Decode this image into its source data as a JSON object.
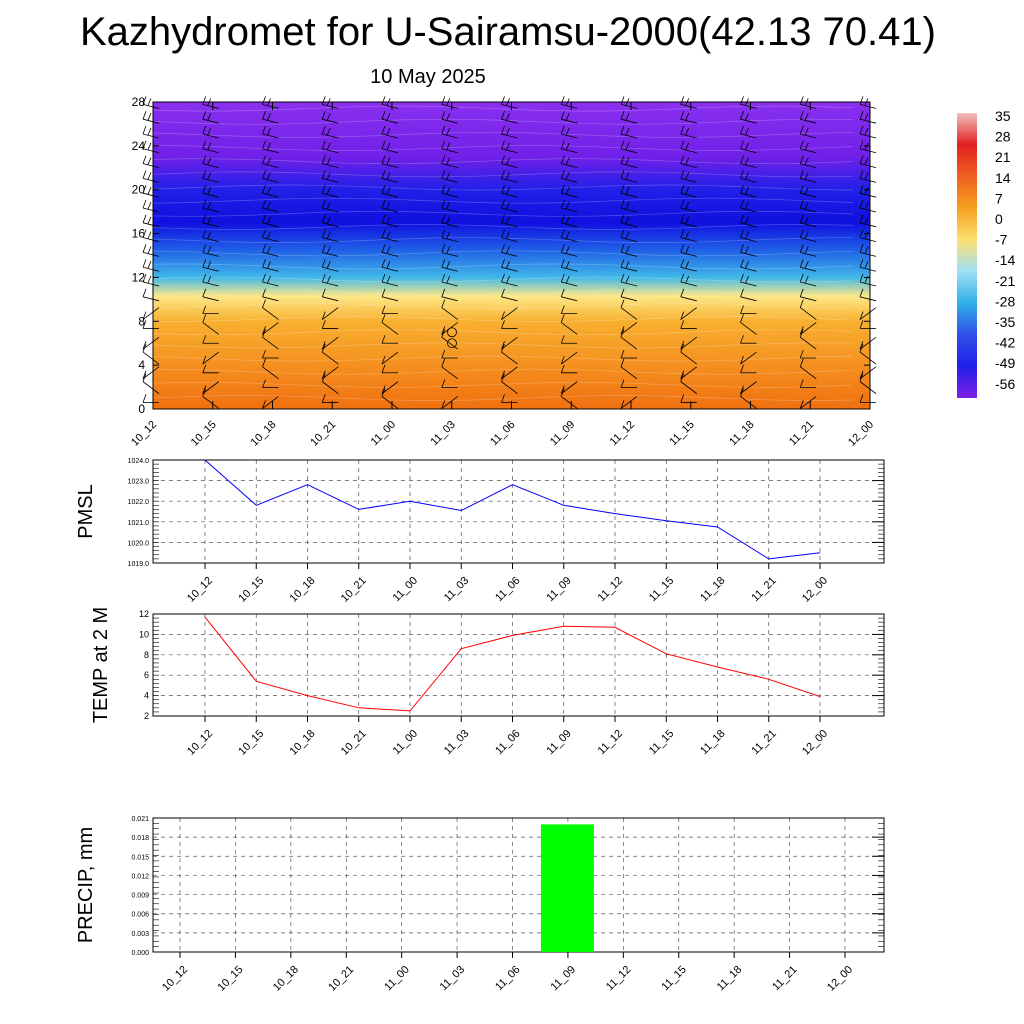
{
  "title": "Kazhydromet for U-Sairamsu-2000(42.13 70.41)",
  "subtitle": "10 May 2025",
  "chart_data": [
    {
      "type": "heatmap",
      "description_key": "vertical temperature cross-section with wind barbs",
      "x_labels": [
        "10_12",
        "10_15",
        "10_18",
        "10_21",
        "11_00",
        "11_03",
        "11_06",
        "11_09",
        "11_12",
        "11_15",
        "11_18",
        "11_21",
        "12_00"
      ],
      "y_ticks": [
        "0",
        "4",
        "8",
        "12",
        "16",
        "20",
        "24",
        "28"
      ],
      "ylim": [
        0,
        28
      ],
      "colorbar": {
        "labels": [
          "35",
          "28",
          "21",
          "14",
          "7",
          "0",
          "-7",
          "-14",
          "-21",
          "-28",
          "-35",
          "-42",
          "-49",
          "-56"
        ],
        "colors": [
          "#f5c0c0",
          "#e02020",
          "#f06020",
          "#f5a020",
          "#fde070",
          "#a0e0f5",
          "#30b0e8",
          "#3050e8",
          "#2020e8",
          "#8020e8"
        ]
      },
      "levels": [
        {
          "y": 0,
          "color": "#f07010"
        },
        {
          "y": 4,
          "color": "#f59020"
        },
        {
          "y": 8,
          "color": "#f8b030"
        },
        {
          "y": 10.3,
          "color": "#fde888"
        },
        {
          "y": 12,
          "color": "#40b8e8"
        },
        {
          "y": 14.5,
          "color": "#2060e8"
        },
        {
          "y": 17,
          "color": "#1010e0"
        },
        {
          "y": 20,
          "color": "#2020e8"
        },
        {
          "y": 23,
          "color": "#7020e8"
        },
        {
          "y": 28,
          "color": "#8a30f0"
        }
      ]
    },
    {
      "type": "line",
      "ylabel": "PMSL",
      "x_labels": [
        "10_12",
        "10_15",
        "10_18",
        "10_21",
        "11_00",
        "11_03",
        "11_06",
        "11_09",
        "11_12",
        "11_15",
        "11_18",
        "11_21",
        "12_00"
      ],
      "y_ticks": [
        "1019.0",
        "1020.0",
        "1021.0",
        "1022.0",
        "1023.0",
        "1024.0"
      ],
      "ylim": [
        1019,
        1024
      ],
      "color": "#0000ff",
      "values": [
        1024.0,
        1021.8,
        1022.8,
        1021.6,
        1022.0,
        1021.55,
        1022.8,
        1021.8,
        1021.4,
        1021.05,
        1020.75,
        1019.2,
        1019.5
      ]
    },
    {
      "type": "line",
      "ylabel": "TEMP at 2 M",
      "x_labels": [
        "10_12",
        "10_15",
        "10_18",
        "10_21",
        "11_00",
        "11_03",
        "11_06",
        "11_09",
        "11_12",
        "11_15",
        "11_18",
        "11_21",
        "12_00"
      ],
      "y_ticks": [
        "2",
        "4",
        "6",
        "8",
        "10",
        "12"
      ],
      "ylim": [
        2,
        12
      ],
      "color": "#ff0000",
      "values": [
        11.7,
        5.4,
        4.0,
        2.8,
        2.5,
        8.6,
        9.9,
        10.8,
        10.7,
        8.1,
        6.8,
        5.6,
        3.9
      ]
    },
    {
      "type": "bar",
      "ylabel": "PRECIP, mm",
      "x_labels": [
        "10_12",
        "10_15",
        "10_18",
        "10_21",
        "11_00",
        "11_03",
        "11_06",
        "11_09",
        "11_12",
        "11_15",
        "11_18",
        "11_21",
        "12_00"
      ],
      "y_ticks": [
        "0.000",
        "0.003",
        "0.006",
        "0.009",
        "0.012",
        "0.015",
        "0.018",
        "0.021"
      ],
      "ylim": [
        0,
        0.021
      ],
      "color": "#00ff00",
      "bars": [
        {
          "center": "11_09",
          "value": 0.02
        }
      ]
    }
  ]
}
